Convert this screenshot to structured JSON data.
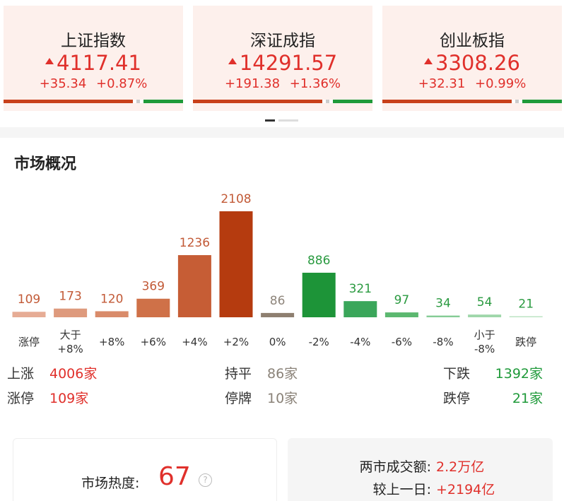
{
  "indices": [
    {
      "name": "上证指数",
      "value": "4117.41",
      "change": "+35.34",
      "pct": "+0.87%"
    },
    {
      "name": "深证成指",
      "value": "14291.57",
      "change": "+191.38",
      "pct": "+1.36%"
    },
    {
      "name": "创业板指",
      "value": "3308.26",
      "change": "+32.31",
      "pct": "+0.99%"
    }
  ],
  "section_title": "市场概况",
  "chart_data": {
    "type": "bar",
    "categories": [
      "涨停",
      "大于\n+8%",
      "+8%",
      "+6%",
      "+4%",
      "+2%",
      "0%",
      "-2%",
      "-4%",
      "-6%",
      "-8%",
      "小于\n-8%",
      "跌停"
    ],
    "values": [
      109,
      173,
      120,
      369,
      1236,
      2108,
      86,
      886,
      321,
      97,
      34,
      54,
      21
    ],
    "colors": [
      "#e6ac95",
      "#de9a7d",
      "#d98b6a",
      "#cf7148",
      "#c65d35",
      "#b53b0f",
      "#8e7f70",
      "#1d9438",
      "#3aa65a",
      "#5cb870",
      "#86cc96",
      "#9fd7aa",
      "#bde3c3"
    ],
    "value_label_colors": [
      "#c25a37",
      "#c25a37",
      "#c25a37",
      "#c25a37",
      "#c25a37",
      "#c25a37",
      "#8e857b",
      "#2a9a40",
      "#2a9a40",
      "#2a9a40",
      "#2a9a40",
      "#2a9a40",
      "#2a9a40"
    ]
  },
  "stats": [
    {
      "label": "上涨",
      "value": "4006家"
    },
    {
      "label": "持平",
      "value": "86家"
    },
    {
      "label": "下跌",
      "value": "1392家"
    },
    {
      "label": "涨停",
      "value": "109家"
    },
    {
      "label": "停牌",
      "value": "10家"
    },
    {
      "label": "跌停",
      "value": "21家"
    }
  ],
  "heat": {
    "label": "市场热度:",
    "value": "67"
  },
  "turnover": {
    "label": "两市成交额:",
    "value": "2.2万亿"
  },
  "compare": {
    "label": "较上一日:",
    "value": "+2194亿"
  }
}
